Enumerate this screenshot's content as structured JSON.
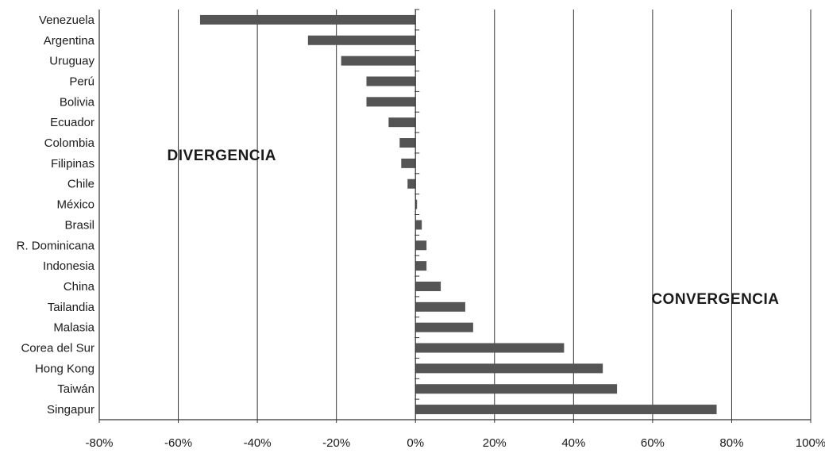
{
  "chart_data": {
    "type": "bar",
    "orientation": "horizontal",
    "title": "",
    "xlabel": "",
    "ylabel": "",
    "xlim": [
      -80,
      100
    ],
    "xticks": [
      -80,
      -60,
      -40,
      -20,
      0,
      20,
      40,
      60,
      80,
      100
    ],
    "xtick_format": "percent",
    "grid": "vertical",
    "categories": [
      "Venezuela",
      "Argentina",
      "Uruguay",
      "Perú",
      "Bolivia",
      "Ecuador",
      "Colombia",
      "Filipinas",
      "Chile",
      "México",
      "Brasil",
      "R. Dominicana",
      "Indonesia",
      "China",
      "Tailandia",
      "Malasia",
      "Corea del Sur",
      "Hong Kong",
      "Taiwán",
      "Singapur"
    ],
    "values": [
      -54.5,
      -27.2,
      -18.8,
      -12.4,
      -12.4,
      -6.8,
      -4.0,
      -3.6,
      -2.0,
      0.4,
      1.6,
      2.8,
      2.8,
      6.4,
      12.6,
      14.6,
      37.6,
      47.4,
      51.0,
      76.2
    ],
    "annotations": [
      {
        "text": "DIVERGENCIA",
        "x": -60,
        "category": "Filipinas"
      },
      {
        "text": "CONVERGENCIA",
        "x": 62.5,
        "category": "Tailandia"
      }
    ]
  }
}
